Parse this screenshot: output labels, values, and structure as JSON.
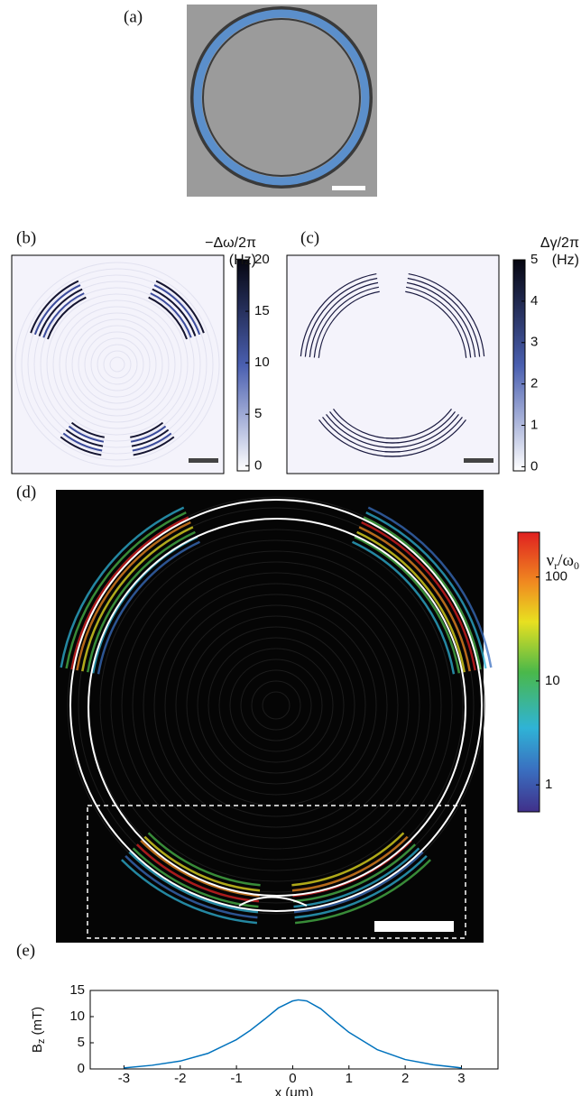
{
  "panels": {
    "a": {
      "label": "(a)"
    },
    "b": {
      "label": "(b)",
      "colorbar": {
        "title": "−Δω/2π",
        "unit": "(Hz)",
        "lim": [
          -0.5,
          20
        ],
        "ticks": [
          0,
          5,
          10,
          15,
          20
        ]
      }
    },
    "c": {
      "label": "(c)",
      "colorbar": {
        "title": "Δγ/2π",
        "unit": "(Hz)",
        "lim": [
          -0.1,
          5
        ],
        "ticks": [
          0,
          1,
          2,
          3,
          4,
          5
        ]
      }
    },
    "d": {
      "label": "(d)",
      "colorbar": {
        "title": [
          "ν",
          "r",
          "/ω",
          "0"
        ],
        "lim": [
          0.55,
          270
        ],
        "ticks": [
          1,
          10,
          100
        ],
        "log": true
      }
    },
    "e": {
      "label": "(e)"
    }
  },
  "chart_data": {
    "type": "line",
    "x": [
      -3,
      -2.5,
      -2,
      -1.5,
      -1,
      -0.75,
      -0.5,
      -0.25,
      0,
      0.1,
      0.25,
      0.5,
      0.75,
      1,
      1.5,
      2,
      2.5,
      3
    ],
    "values": [
      0.2,
      0.7,
      1.5,
      3.0,
      5.6,
      7.4,
      9.5,
      11.7,
      13.0,
      13.2,
      13.0,
      11.5,
      9.2,
      7.0,
      3.7,
      1.8,
      0.8,
      0.2
    ],
    "color": "#0072bd",
    "xlim": [
      -3.6,
      3.65
    ],
    "ylim": [
      0,
      15
    ],
    "xticks": [
      -3,
      -2,
      -1,
      0,
      1,
      2,
      3
    ],
    "yticks": [
      0,
      5,
      10,
      15
    ],
    "xlabel": "x (μm)",
    "ylabel": [
      "B",
      "z",
      " (mT)"
    ]
  }
}
